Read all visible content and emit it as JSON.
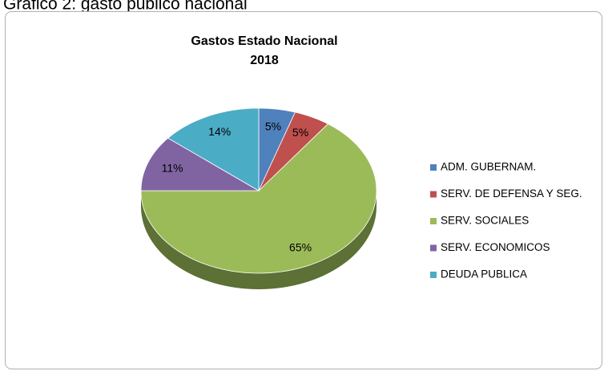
{
  "caption": "Gráfico 2: gasto público nacional",
  "chart_data": {
    "type": "pie3d",
    "title": [
      "Gastos Estado Nacional",
      "2018"
    ],
    "categories": [
      "ADM. GUBERNAM.",
      "SERV. DE DEFENSA Y SEG.",
      "SERV. SOCIALES",
      "SERV. ECONOMICOS",
      "DEUDA PUBLICA"
    ],
    "values": [
      5,
      5,
      65,
      11,
      14
    ],
    "value_labels": [
      "5%",
      "5%",
      "65%",
      "11%",
      "14%"
    ],
    "colors": [
      "#4f81bd",
      "#c0504d",
      "#9bbb59",
      "#8064a2",
      "#4bacc6"
    ],
    "legend": "right"
  }
}
